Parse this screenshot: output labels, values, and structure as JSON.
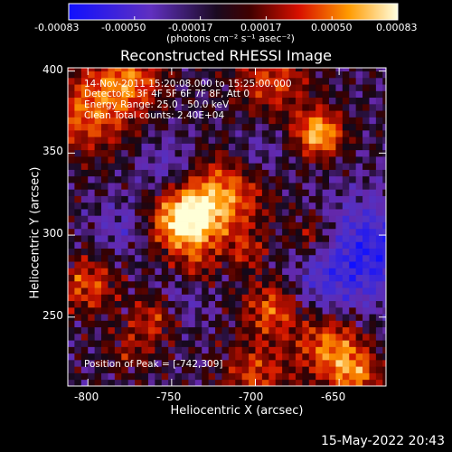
{
  "colorbar": {
    "tick_labels": [
      "-0.00083",
      "-0.00050",
      "-0.00017",
      "0.00017",
      "0.00050",
      "0.00083"
    ],
    "units": "(photons cm⁻² s⁻¹ asec⁻²)"
  },
  "chart_data": {
    "type": "heatmap",
    "title": "Reconstructed RHESSI Image",
    "xlabel": "Heliocentric X (arcsec)",
    "ylabel": "Heliocentric Y (arcsec)",
    "xlim": [
      -812,
      -622
    ],
    "ylim": [
      208,
      402
    ],
    "x_ticks": [
      -800,
      -750,
      -700,
      -650
    ],
    "y_ticks": [
      250,
      300,
      350,
      400
    ],
    "x_tick_labels": [
      "-800",
      "-750",
      "-700",
      "-650"
    ],
    "y_tick_labels": [
      "250",
      "300",
      "350",
      "400"
    ],
    "value_range": [
      -0.00083,
      0.00083
    ],
    "peak": {
      "x": -742,
      "y": 309
    }
  },
  "annotations": {
    "time_range": "14-Nov-2011 15:20:08.000 to 15:25:00.000",
    "detectors": "Detectors: 3F 4F 5F 6F 7F 8F, Att 0",
    "energy": "Energy Range: 25.0 - 50.0 keV",
    "clean": "Clean    Total counts: 2.40E+04",
    "peak_text": "Position of Peak = [-742,309]"
  },
  "timestamp": "15-May-2022 20:43"
}
